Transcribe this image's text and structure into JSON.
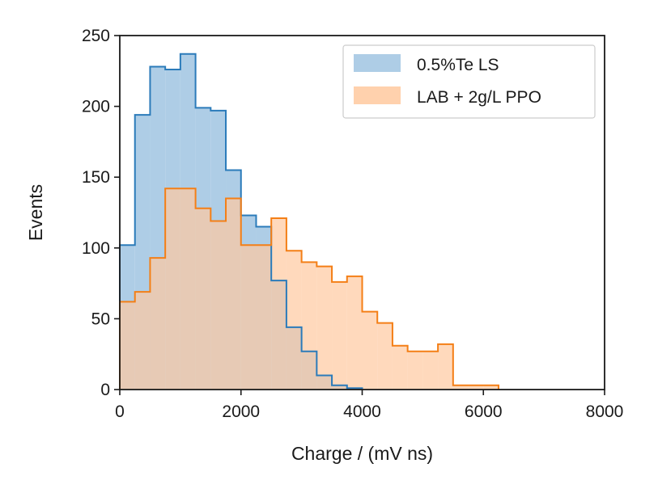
{
  "chart_data": {
    "type": "histogram",
    "title": "",
    "xlabel": "Charge / (mV ns)",
    "ylabel": "Events",
    "xlim": [
      0,
      8000
    ],
    "ylim": [
      0,
      250
    ],
    "xticks": [
      0,
      2000,
      4000,
      6000,
      8000
    ],
    "yticks": [
      0,
      50,
      100,
      150,
      200,
      250
    ],
    "grid": false,
    "legend_position": "top-right",
    "bin_edges": [
      0,
      250,
      500,
      750,
      1000,
      1250,
      1500,
      1750,
      2000,
      2250,
      2500,
      2750,
      3000,
      3250,
      3500,
      3750,
      4000,
      4250,
      4500,
      4750,
      5000,
      5250,
      5500,
      5750,
      6000,
      6250
    ],
    "series": [
      {
        "name": "0.5%Te LS",
        "fill": "#aecde6",
        "edge": "#2b7bba",
        "values": [
          102,
          194,
          228,
          226,
          237,
          199,
          197,
          155,
          123,
          115,
          77,
          44,
          27,
          10,
          3,
          1,
          0,
          0,
          0,
          0,
          0,
          0,
          0,
          0,
          0
        ]
      },
      {
        "name": "LAB + 2g/L PPO",
        "fill": "#ffc99f",
        "edge": "#f47f16",
        "values": [
          62,
          69,
          93,
          142,
          142,
          128,
          119,
          135,
          102,
          102,
          121,
          98,
          90,
          87,
          76,
          80,
          55,
          47,
          31,
          27,
          27,
          32,
          3,
          3,
          3
        ]
      }
    ]
  }
}
